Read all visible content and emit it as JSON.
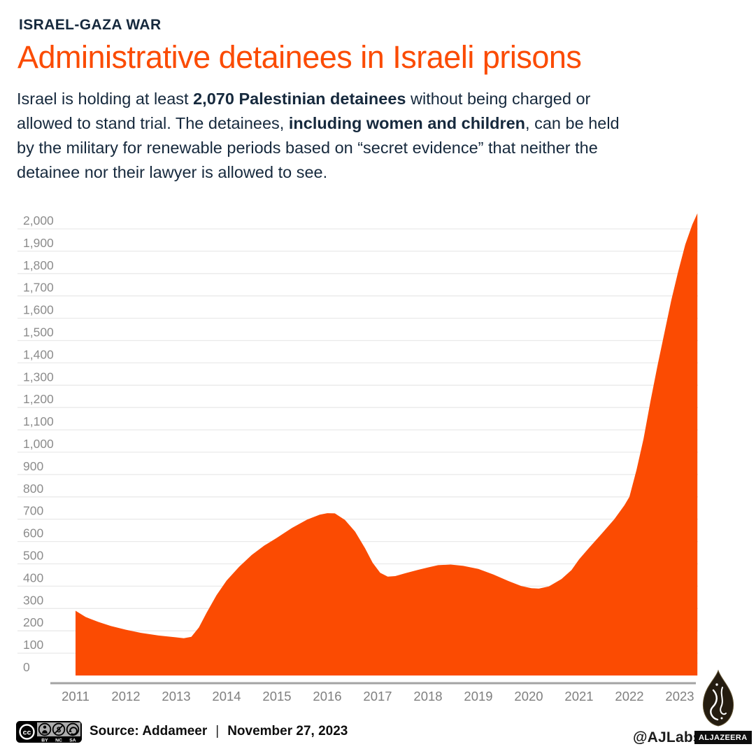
{
  "header": {
    "kicker": "ISRAEL-GAZA WAR",
    "title": "Administrative detainees in Israeli prisons",
    "body_lines": [
      [
        {
          "text": "Israel is holding at least ",
          "bold": false
        },
        {
          "text": "2,070 Palestinian detainees",
          "bold": true
        },
        {
          "text": " without being charged or",
          "bold": false
        }
      ],
      [
        {
          "text": "allowed to stand trial. The detainees, ",
          "bold": false
        },
        {
          "text": "including women and children",
          "bold": true
        },
        {
          "text": ", can be held",
          "bold": false
        }
      ],
      [
        {
          "text": "by the military for renewable periods based on “secret evidence” that neither the",
          "bold": false
        }
      ],
      [
        {
          "text": "detainee nor their lawyer is allowed to see.",
          "bold": false
        }
      ]
    ]
  },
  "chart_data": {
    "type": "area",
    "title": "Administrative detainees in Israeli prisons",
    "xlabel": "",
    "ylabel": "",
    "ylim": [
      0,
      2000
    ],
    "y_step": 100,
    "grid": "horizontal",
    "x_tick_labels": [
      "2011",
      "2012",
      "2013",
      "2014",
      "2015",
      "2016",
      "2017",
      "2018",
      "2019",
      "2020",
      "2021",
      "2022",
      "2023"
    ],
    "latest_value": 2070,
    "series": [
      {
        "name": "Administrative detainees",
        "color": "#FB4B02",
        "points": [
          [
            2011.0,
            290
          ],
          [
            2011.2,
            262
          ],
          [
            2011.45,
            240
          ],
          [
            2011.7,
            222
          ],
          [
            2012.0,
            205
          ],
          [
            2012.3,
            191
          ],
          [
            2012.65,
            179
          ],
          [
            2013.0,
            171
          ],
          [
            2013.15,
            167
          ],
          [
            2013.3,
            173
          ],
          [
            2013.45,
            215
          ],
          [
            2013.6,
            280
          ],
          [
            2013.8,
            360
          ],
          [
            2014.0,
            425
          ],
          [
            2014.25,
            487
          ],
          [
            2014.5,
            540
          ],
          [
            2014.75,
            582
          ],
          [
            2015.0,
            617
          ],
          [
            2015.3,
            661
          ],
          [
            2015.6,
            698
          ],
          [
            2015.85,
            720
          ],
          [
            2016.0,
            727
          ],
          [
            2016.15,
            726
          ],
          [
            2016.35,
            697
          ],
          [
            2016.55,
            645
          ],
          [
            2016.75,
            570
          ],
          [
            2016.9,
            505
          ],
          [
            2017.05,
            460
          ],
          [
            2017.2,
            443
          ],
          [
            2017.35,
            445
          ],
          [
            2017.55,
            458
          ],
          [
            2017.8,
            473
          ],
          [
            2018.0,
            484
          ],
          [
            2018.2,
            494
          ],
          [
            2018.45,
            497
          ],
          [
            2018.7,
            491
          ],
          [
            2019.0,
            477
          ],
          [
            2019.3,
            452
          ],
          [
            2019.6,
            423
          ],
          [
            2019.85,
            401
          ],
          [
            2020.05,
            391
          ],
          [
            2020.2,
            389
          ],
          [
            2020.4,
            399
          ],
          [
            2020.65,
            432
          ],
          [
            2020.85,
            472
          ],
          [
            2021.0,
            520
          ],
          [
            2021.2,
            572
          ],
          [
            2021.45,
            635
          ],
          [
            2021.7,
            700
          ],
          [
            2021.9,
            762
          ],
          [
            2022.0,
            800
          ],
          [
            2022.14,
            920
          ],
          [
            2022.28,
            1060
          ],
          [
            2022.42,
            1230
          ],
          [
            2022.56,
            1390
          ],
          [
            2022.7,
            1540
          ],
          [
            2022.83,
            1680
          ],
          [
            2022.97,
            1810
          ],
          [
            2023.11,
            1930
          ],
          [
            2023.25,
            2020
          ],
          [
            2023.35,
            2070
          ]
        ]
      }
    ]
  },
  "footer": {
    "license_badge": {
      "cc_label": "cc",
      "labels": [
        "BY",
        "NC",
        "SA"
      ]
    },
    "source_label": "Source: Addameer",
    "separator": "|",
    "date": "November 27, 2023",
    "credit_handle": "@AJLabs",
    "brand_wordmark": "ALJAZEERA"
  },
  "colors": {
    "accent": "#FB4B02",
    "ink": "#16293D",
    "axis_label": "#8C8C8C",
    "x_label": "#7F7F7F",
    "gridline": "#EAEAEA",
    "baseline": "#A3A3A3"
  }
}
